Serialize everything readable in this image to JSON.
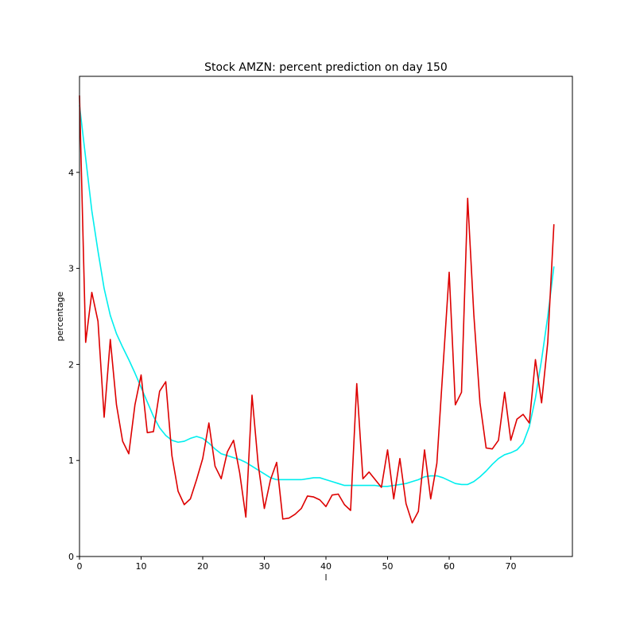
{
  "chart_data": {
    "type": "line",
    "title": "Stock AMZN: percent prediction on day 150",
    "xlabel": "l",
    "ylabel": "percentage",
    "xlim": [
      0,
      80
    ],
    "ylim": [
      0,
      5.0
    ],
    "x_ticks": [
      0,
      10,
      20,
      30,
      40,
      50,
      60,
      70
    ],
    "y_ticks": [
      0,
      1,
      2,
      3,
      4
    ],
    "grid": false,
    "legend": null,
    "series": [
      {
        "color": "#dd0000",
        "values": [
          4.8,
          2.23,
          2.75,
          2.45,
          1.45,
          2.26,
          1.58,
          1.2,
          1.07,
          1.58,
          1.89,
          1.29,
          1.3,
          1.72,
          1.82,
          1.05,
          0.68,
          0.54,
          0.6,
          0.8,
          1.02,
          1.39,
          0.94,
          0.81,
          1.09,
          1.21,
          0.87,
          0.41,
          1.68,
          0.96,
          0.5,
          0.8,
          0.98,
          0.39,
          0.4,
          0.44,
          0.5,
          0.63,
          0.62,
          0.59,
          0.52,
          0.64,
          0.65,
          0.54,
          0.48,
          1.8,
          0.81,
          0.88,
          0.8,
          0.72,
          1.11,
          0.6,
          1.02,
          0.55,
          0.35,
          0.47,
          1.11,
          0.6,
          0.97,
          1.97,
          2.96,
          1.58,
          1.71,
          3.73,
          2.52,
          1.6,
          1.13,
          1.12,
          1.21,
          1.71,
          1.21,
          1.43,
          1.48,
          1.39,
          2.05,
          1.6,
          2.23,
          3.46
        ]
      },
      {
        "color": "#00eeee",
        "values": [
          4.7,
          4.15,
          3.6,
          3.18,
          2.79,
          2.51,
          2.32,
          2.18,
          2.05,
          1.91,
          1.76,
          1.61,
          1.46,
          1.34,
          1.26,
          1.21,
          1.19,
          1.2,
          1.23,
          1.25,
          1.23,
          1.18,
          1.12,
          1.07,
          1.05,
          1.03,
          1.01,
          0.98,
          0.94,
          0.9,
          0.86,
          0.82,
          0.8,
          0.8,
          0.8,
          0.8,
          0.8,
          0.81,
          0.82,
          0.82,
          0.8,
          0.78,
          0.76,
          0.74,
          0.74,
          0.74,
          0.74,
          0.74,
          0.74,
          0.73,
          0.73,
          0.74,
          0.75,
          0.76,
          0.78,
          0.8,
          0.83,
          0.84,
          0.84,
          0.82,
          0.79,
          0.76,
          0.75,
          0.75,
          0.78,
          0.83,
          0.89,
          0.96,
          1.02,
          1.06,
          1.08,
          1.11,
          1.18,
          1.35,
          1.65,
          2.05,
          2.5,
          3.02
        ]
      }
    ]
  }
}
